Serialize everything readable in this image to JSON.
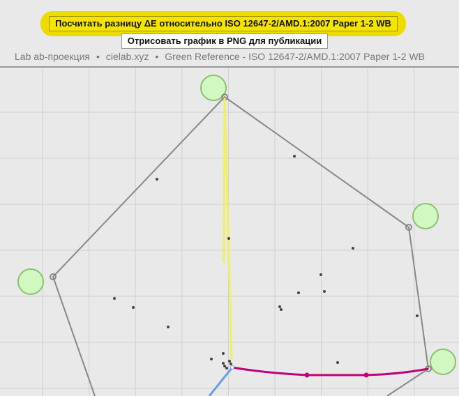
{
  "toolbar": {
    "delta_e_button": "Посчитать разницу ΔE относительно ISO 12647-2/AMD.1:2007 Paper 1-2 WB",
    "png_button": "Отрисовать график в PNG для публикации"
  },
  "breadcrumb": {
    "items": [
      "Lab ab-проекция",
      "cielab.xyz",
      "Green Reference - ISO 12647-2/AMD.1:2007 Paper 1-2 WB"
    ],
    "separator": "•"
  },
  "colors": {
    "highlight": "#ecdc00",
    "reference_circle": "#d0f8c0",
    "gamut": "#888888",
    "magenta_path": "#c0007a",
    "yellow_path": "#f0f060",
    "blue_path": "#6a9fe0"
  }
}
